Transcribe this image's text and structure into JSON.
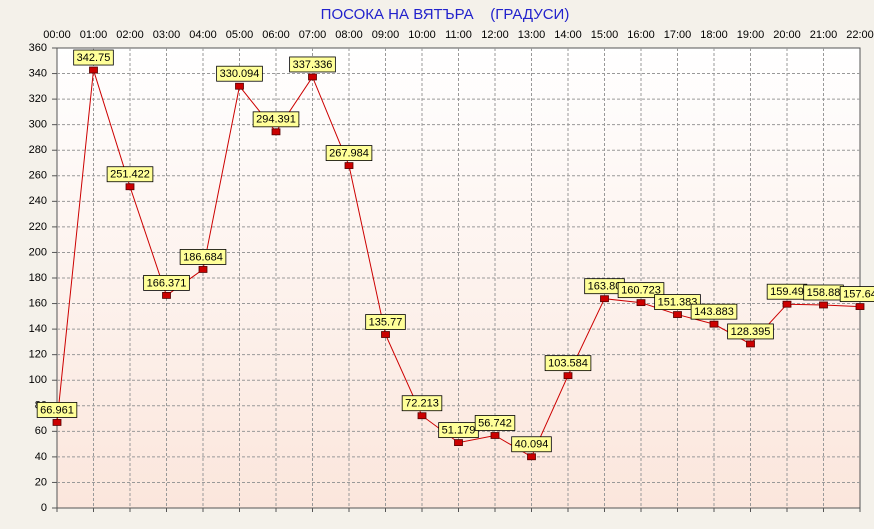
{
  "chart_data": {
    "type": "line",
    "title": "ПОСОКА НА ВЯТЪРА    (ГРАДУСИ)",
    "categories": [
      "00:00",
      "01:00",
      "02:00",
      "03:00",
      "04:00",
      "05:00",
      "06:00",
      "07:00",
      "08:00",
      "09:00",
      "10:00",
      "11:00",
      "12:00",
      "13:00",
      "14:00",
      "15:00",
      "16:00",
      "17:00",
      "18:00",
      "19:00",
      "20:00",
      "21:00",
      "22:00"
    ],
    "series": [
      {
        "color": "#cc0000",
        "values": [
          66.961,
          342.75,
          251.422,
          166.371,
          186.684,
          330.094,
          294.391,
          337.336,
          267.984,
          135.77,
          72.213,
          51.179,
          56.742,
          40.094,
          103.584,
          163.8,
          160.723,
          151.383,
          143.883,
          128.395,
          159.49,
          158.88,
          157.64
        ],
        "value_labels": [
          "66.961",
          "342.75",
          "251.422",
          "166.371",
          "186.684",
          "330.094",
          "294.391",
          "337.336",
          "267.984",
          "135.77",
          "72.213",
          "51.179",
          "56.742",
          "40.094",
          "103.584",
          "163.80",
          "160.723",
          "151.383",
          "143.883",
          "128.395",
          "159.49",
          "158.88",
          "157.64"
        ]
      }
    ],
    "ylim": [
      0,
      360
    ],
    "yticks": [
      0,
      20,
      40,
      60,
      80,
      100,
      120,
      140,
      160,
      180,
      200,
      220,
      240,
      260,
      280,
      300,
      320,
      340,
      360
    ],
    "grid": true
  }
}
